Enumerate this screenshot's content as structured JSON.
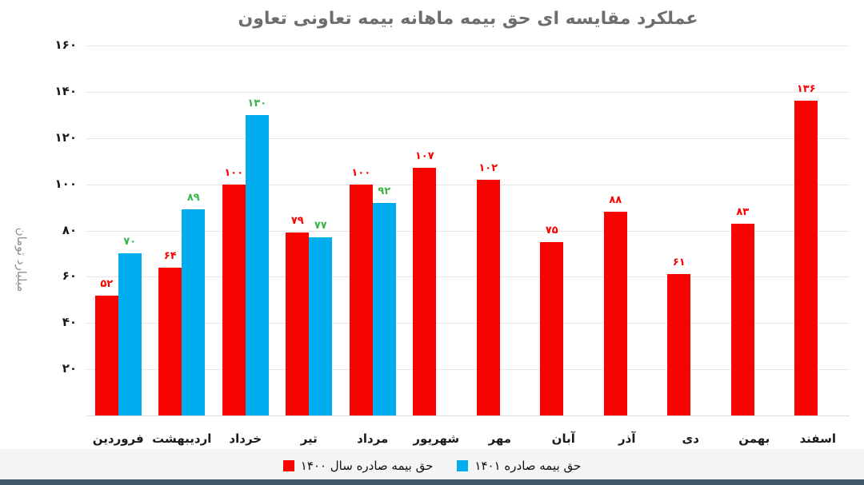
{
  "title": "عملکرد مقایسه ای حق بیمه ماهانه بیمه تعاونی تعاون",
  "y_axis": {
    "title": "میلیارد تومان",
    "tick_labels": [
      "۲۰",
      "۴۰",
      "۶۰",
      "۸۰",
      "۱۰۰",
      "۱۲۰",
      "۱۴۰",
      "۱۶۰"
    ],
    "tick_values": [
      20,
      40,
      60,
      80,
      100,
      120,
      140,
      160
    ]
  },
  "chart_data": {
    "type": "bar",
    "title": "عملکرد مقایسه ای حق بیمه ماهانه بیمه تعاونی تعاون",
    "xlabel": "",
    "ylabel": "میلیارد تومان",
    "ylim": [
      0,
      160
    ],
    "grid": true,
    "legend_position": "bottom",
    "categories": [
      "فروردین",
      "اردیبهشت",
      "خرداد",
      "تیر",
      "مرداد",
      "شهریور",
      "مهر",
      "آبان",
      "آذر",
      "دی",
      "بهمن",
      "اسفند"
    ],
    "series": [
      {
        "key": "1400",
        "name": "حق بیمه صادره سال ۱۴۰۰",
        "color": "#f80400",
        "label_color": "#f80400",
        "values": [
          52,
          64,
          100,
          79,
          100,
          107,
          102,
          75,
          88,
          61,
          83,
          136
        ],
        "labels": [
          "۵۲",
          "۶۴",
          "۱۰۰",
          "۷۹",
          "۱۰۰",
          "۱۰۷",
          "۱۰۲",
          "۷۵",
          "۸۸",
          "۶۱",
          "۸۳",
          "۱۳۶"
        ]
      },
      {
        "key": "1401",
        "name": "حق بیمه صادره ۱۴۰۱",
        "color": "#00aeef",
        "label_color": "#3bb54a",
        "values": [
          70,
          89,
          130,
          77,
          92,
          null,
          null,
          null,
          null,
          null,
          null,
          null
        ],
        "labels": [
          "۷۰",
          "۸۹",
          "۱۳۰",
          "۷۷",
          "۹۲",
          "",
          "",
          "",
          "",
          "",
          "",
          ""
        ]
      }
    ]
  },
  "legend": {
    "items": [
      {
        "key": "1400",
        "label": "حق بیمه صادره سال ۱۴۰۰",
        "color": "#f80400"
      },
      {
        "key": "1401",
        "label": "حق بیمه صادره ۱۴۰۱",
        "color": "#00aeef"
      }
    ]
  }
}
